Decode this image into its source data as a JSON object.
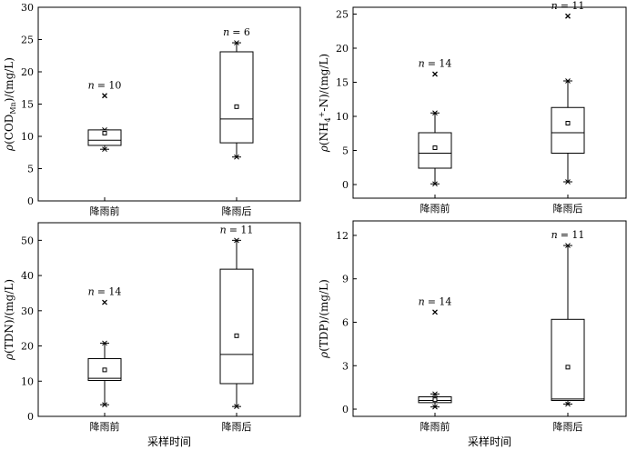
{
  "chart_data": [
    {
      "type": "box",
      "ylabel_parts": [
        "ρ",
        "(COD",
        "Mn",
        ")/(mg/L)"
      ],
      "ylim": [
        0,
        30
      ],
      "yticks": [
        "0",
        "5",
        "10",
        "15",
        "20",
        "25",
        "30"
      ],
      "categories": [
        "降雨前",
        "降雨后"
      ],
      "xlabel": "",
      "boxes": [
        {
          "category": "降雨前",
          "n_label": "= 10",
          "whisker_low": 8.0,
          "q1": 8.6,
          "median": 9.4,
          "q3": 11.0,
          "whisker_high": 11.0,
          "mean": 10.5,
          "outliers": [
            16.3
          ]
        },
        {
          "category": "降雨后",
          "n_label": "= 6",
          "whisker_low": 6.8,
          "q1": 9.0,
          "median": 12.7,
          "q3": 23.1,
          "whisker_high": 24.5,
          "mean": 14.6,
          "outliers": []
        }
      ]
    },
    {
      "type": "box",
      "ylabel_parts": [
        "ρ",
        "(NH",
        "4",
        "+",
        "-N)/(mg/L)"
      ],
      "ylim": [
        -2,
        26
      ],
      "yticks": [
        "0",
        "5",
        "10",
        "15",
        "20",
        "25"
      ],
      "categories": [
        "降雨前",
        "降雨后"
      ],
      "xlabel": "",
      "boxes": [
        {
          "category": "降雨前",
          "n_label": "= 14",
          "whisker_low": 0.1,
          "q1": 2.4,
          "median": 4.6,
          "q3": 7.6,
          "whisker_high": 10.5,
          "mean": 5.4,
          "outliers": [
            16.2
          ]
        },
        {
          "category": "降雨后",
          "n_label": "= 11",
          "whisker_low": 0.4,
          "q1": 4.6,
          "median": 7.6,
          "q3": 11.3,
          "whisker_high": 15.2,
          "mean": 9.0,
          "outliers": [
            24.7
          ]
        }
      ]
    },
    {
      "type": "box",
      "ylabel_parts": [
        "ρ",
        "(TDN)/(mg/L)"
      ],
      "ylim": [
        0,
        55
      ],
      "yticks": [
        "0",
        "10",
        "20",
        "30",
        "40",
        "50"
      ],
      "categories": [
        "降雨前",
        "降雨后"
      ],
      "xlabel": "采样时间",
      "boxes": [
        {
          "category": "降雨前",
          "n_label": "= 14",
          "whisker_low": 3.3,
          "q1": 10.2,
          "median": 10.8,
          "q3": 16.4,
          "whisker_high": 20.8,
          "mean": 13.2,
          "outliers": [
            32.4
          ]
        },
        {
          "category": "降雨后",
          "n_label": "= 11",
          "whisker_low": 2.8,
          "q1": 9.3,
          "median": 17.6,
          "q3": 41.8,
          "whisker_high": 50.0,
          "mean": 22.9,
          "outliers": []
        }
      ]
    },
    {
      "type": "box",
      "ylabel_parts": [
        "ρ",
        "(TDP)/(mg/L)"
      ],
      "ylim": [
        -0.5,
        13.0
      ],
      "yticks": [
        "0",
        "3",
        "6",
        "9",
        "12"
      ],
      "categories": [
        "降雨前",
        "降雨后"
      ],
      "xlabel": "采样时间",
      "boxes": [
        {
          "category": "降雨前",
          "n_label": "= 14",
          "whisker_low": 0.15,
          "q1": 0.45,
          "median": 0.6,
          "q3": 0.85,
          "whisker_high": 1.05,
          "mean": 0.65,
          "outliers": [
            6.7
          ]
        },
        {
          "category": "降雨后",
          "n_label": "= 11",
          "whisker_low": 0.35,
          "q1": 0.6,
          "median": 0.7,
          "q3": 6.2,
          "whisker_high": 11.3,
          "mean": 2.9,
          "outliers": []
        }
      ]
    }
  ]
}
